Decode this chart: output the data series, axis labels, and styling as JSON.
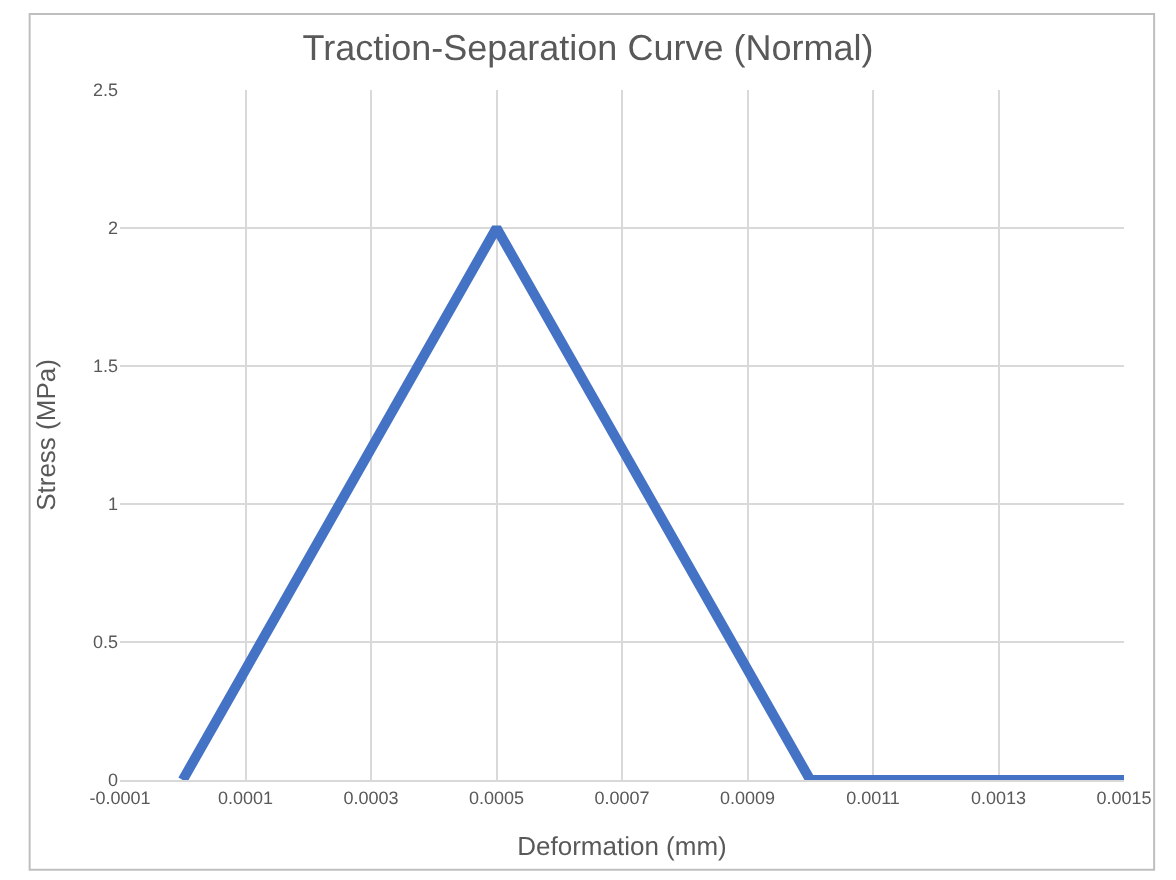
{
  "chart_data": {
    "type": "line",
    "title": "Traction-Separation Curve (Normal)",
    "xlabel": "Deformation (mm)",
    "ylabel": "Stress (MPa)",
    "x": [
      0,
      0.0005,
      0.001,
      0.0015
    ],
    "series": [
      {
        "color": "#4472c4",
        "values": [
          0,
          2,
          0,
          0
        ]
      }
    ],
    "xlim": [
      -0.0001,
      0.0015
    ],
    "xticks": [
      -0.0001,
      0.0001,
      0.0003,
      0.0005,
      0.0007,
      0.0009,
      0.0011,
      0.0013,
      0.0015
    ],
    "ylim": [
      0,
      2.5
    ],
    "yticks": [
      0,
      0.5,
      1,
      1.5,
      2,
      2.5
    ],
    "grid": true,
    "marker": "none",
    "line_style": "solid"
  }
}
